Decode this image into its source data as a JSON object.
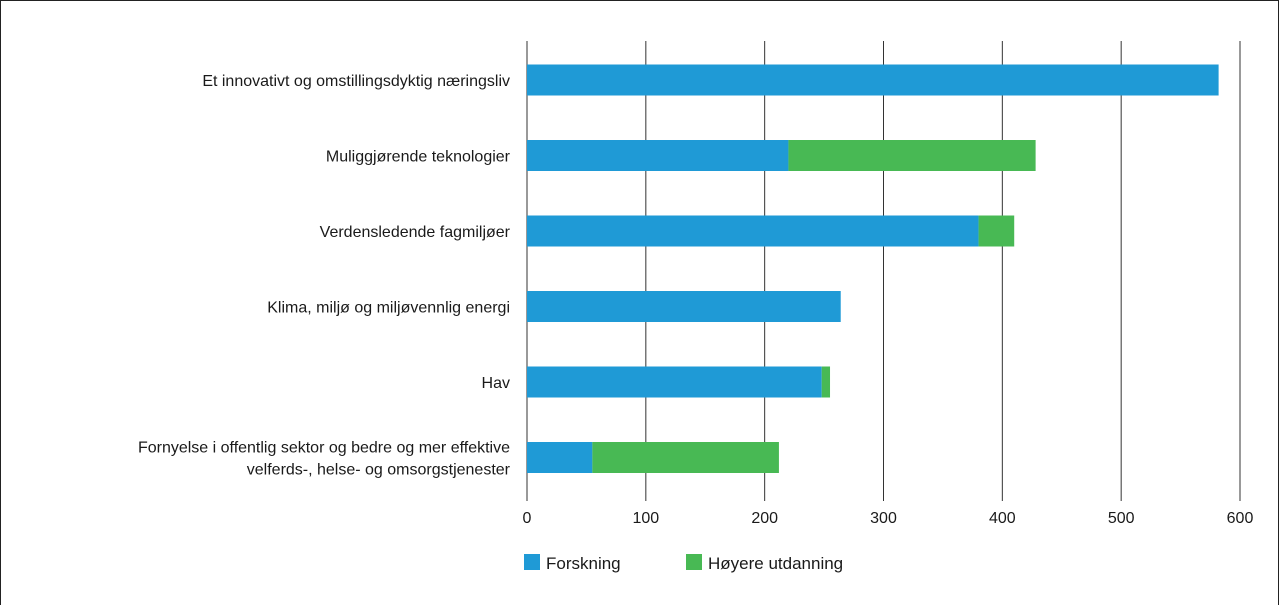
{
  "chart_data": {
    "type": "bar",
    "orientation": "horizontal",
    "stacked": true,
    "categories": [
      [
        "Et innovativt og omstillingsdyktig næringsliv"
      ],
      [
        "Muliggjørende teknologier"
      ],
      [
        "Verdensledende fagmiljøer"
      ],
      [
        "Klima, miljø og miljøvennlig energi"
      ],
      [
        "Hav"
      ],
      [
        "Fornyelse i offentlig sektor og bedre og mer effektive",
        "velferds-, helse- og omsorgstjenester"
      ]
    ],
    "series": [
      {
        "name": "Forskning",
        "color": "#1f9ad6",
        "values": [
          582,
          220,
          380,
          264,
          248,
          55
        ]
      },
      {
        "name": "Høyere utdanning",
        "color": "#48b954",
        "values": [
          0,
          208,
          30,
          0,
          7,
          157
        ]
      }
    ],
    "xlim": [
      0,
      600
    ],
    "xticks": [
      "0",
      "100",
      "200",
      "300",
      "400",
      "500",
      "600"
    ],
    "grid": true,
    "legend": "bottom"
  }
}
